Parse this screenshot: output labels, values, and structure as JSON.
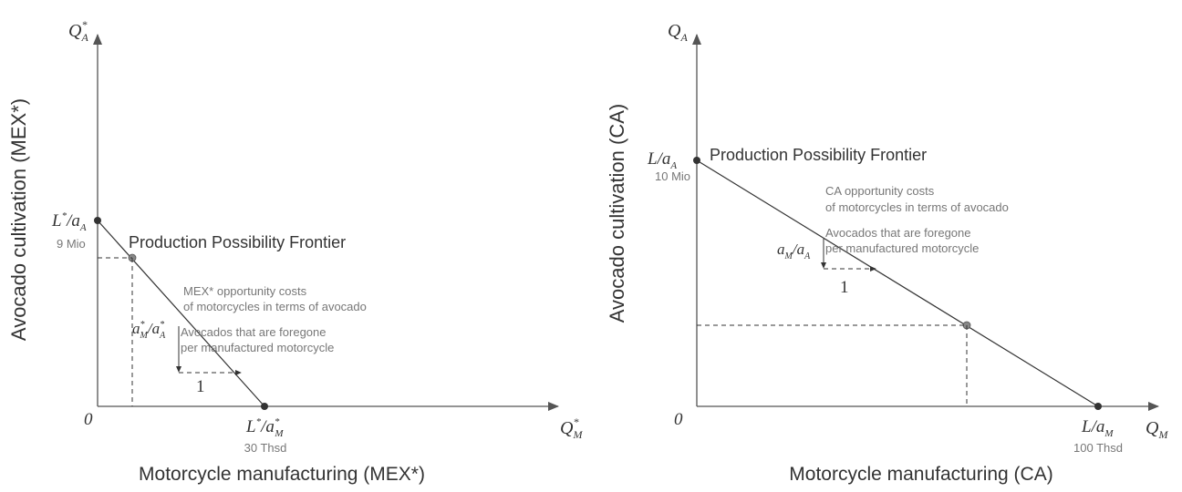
{
  "colors": {
    "ink": "#333333",
    "note": "#777777",
    "axis": "#555555",
    "point_gray": "#888888"
  },
  "panels": [
    {
      "origin_label": "0",
      "y_axis_label": "Avocado cultivation (MEX*)",
      "x_axis_label": "Motorcycle manufacturing (MEX*)",
      "y_axis_symbol": "Q*_A",
      "x_axis_symbol": "Q*_M",
      "y_intercept_symbol": "L*/a_A",
      "y_intercept_value": "9 Mio",
      "x_intercept_symbol": "L*/a*_M",
      "x_intercept_value": "30 Thsd",
      "frontier_title": "Production Possibility Frontier",
      "note_line1": "MEX* opportunity costs",
      "note_line2": "of motorcycles in terms of avocado",
      "note_line3": "Avocados that are foregone",
      "note_line4": "per manufactured motorcycle",
      "slope_symbol": "a*_M/a*_A",
      "step_label": "1"
    },
    {
      "origin_label": "0",
      "y_axis_label": "Avocado cultivation (CA)",
      "x_axis_label": "Motorcycle manufacturing (CA)",
      "y_axis_symbol": "Q_A",
      "x_axis_symbol": "Q_M",
      "y_intercept_symbol": "L/a_A",
      "y_intercept_value": "10 Mio",
      "x_intercept_symbol": "L/a_M",
      "x_intercept_value": "100 Thsd",
      "frontier_title": "Production Possibility Frontier",
      "note_line1": "CA opportunity costs",
      "note_line2": "of motorcycles in terms of avocado",
      "note_line3": "Avocados that are foregone",
      "note_line4": "per manufactured motorcycle",
      "slope_symbol": "a_M/a_A",
      "step_label": "1"
    }
  ]
}
